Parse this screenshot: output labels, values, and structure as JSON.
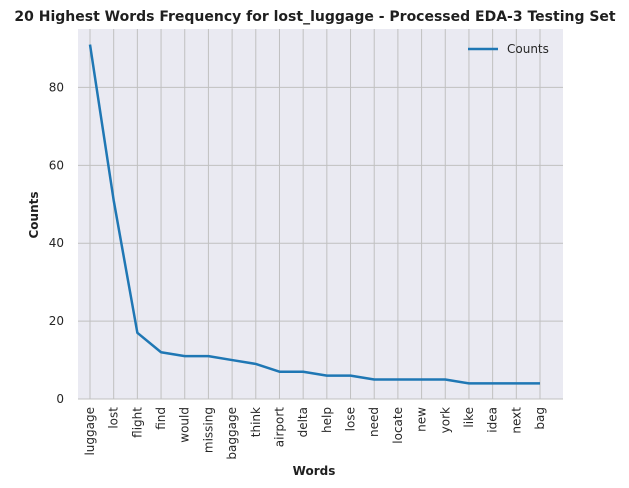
{
  "chart_data": {
    "type": "line",
    "title": "20 Highest Words Frequency for lost_luggage - Processed EDA-3 Testing Set",
    "xlabel": "Words",
    "ylabel": "Counts",
    "categories": [
      "luggage",
      "lost",
      "flight",
      "find",
      "would",
      "missing",
      "baggage",
      "think",
      "airport",
      "delta",
      "help",
      "lose",
      "need",
      "locate",
      "new",
      "york",
      "like",
      "idea",
      "next",
      "bag"
    ],
    "series": [
      {
        "name": "Counts",
        "values": [
          91,
          51,
          17,
          12,
          11,
          11,
          10,
          9,
          7,
          7,
          6,
          6,
          5,
          5,
          5,
          5,
          4,
          4,
          4,
          4
        ]
      }
    ],
    "ylim": [
      0,
      95
    ],
    "yticks": [
      0,
      20,
      40,
      60,
      80
    ],
    "grid": true,
    "legend_position": "top-right",
    "colors": {
      "line": "#1f77b4",
      "background": "#eaeaf2",
      "grid": "#c0c0c0"
    }
  }
}
